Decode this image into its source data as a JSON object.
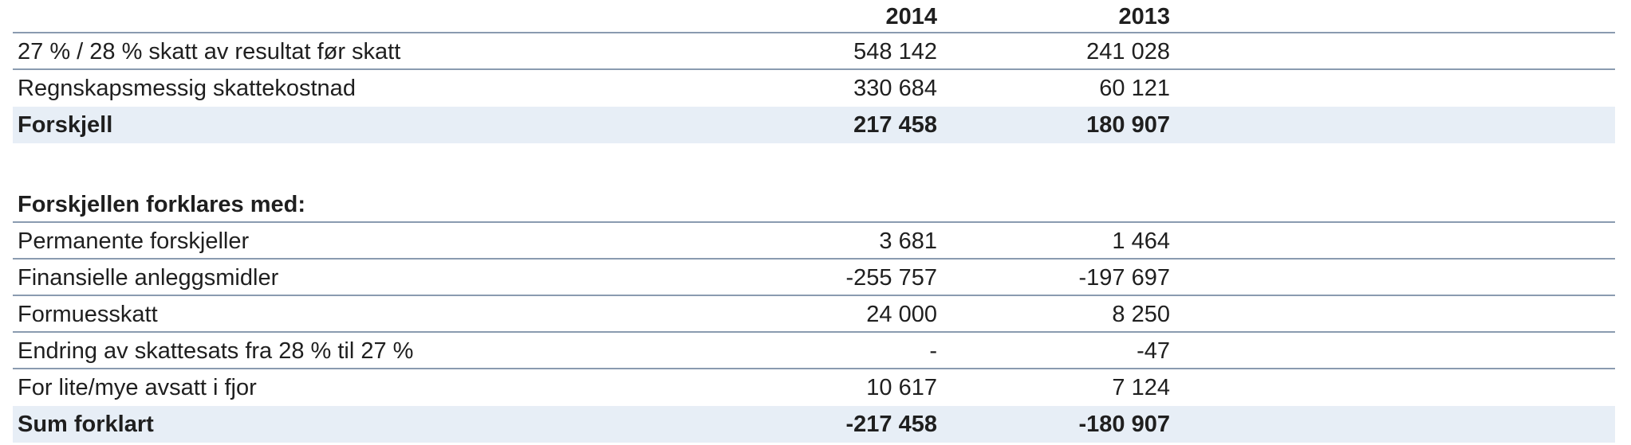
{
  "columns": {
    "year1": "2014",
    "year2": "2013"
  },
  "top_rows": [
    {
      "label": "27 % / 28 % skatt av resultat før skatt",
      "y1": "548 142",
      "y2": "241 028"
    },
    {
      "label": "Regnskapsmessig skattekostnad",
      "y1": "330 684",
      "y2": "60 121"
    }
  ],
  "difference": {
    "label": "Forskjell",
    "y1": "217 458",
    "y2": "180 907"
  },
  "section_title": "Forskjellen forklares med:",
  "explain_rows": [
    {
      "label": "Permanente forskjeller",
      "y1": "3 681",
      "y2": "1 464"
    },
    {
      "label": "Finansielle anleggsmidler",
      "y1": "-255 757",
      "y2": "-197 697"
    },
    {
      "label": "Formuesskatt",
      "y1": "24 000",
      "y2": "8 250"
    },
    {
      "label": "Endring av skattesats fra 28 % til 27 %",
      "y1": "-",
      "y2": "-47"
    },
    {
      "label": "For lite/mye avsatt i fjor",
      "y1": "10 617",
      "y2": "7 124"
    }
  ],
  "sum": {
    "label": "Sum forklart",
    "y1": "-217 458",
    "y2": "-180 907"
  }
}
